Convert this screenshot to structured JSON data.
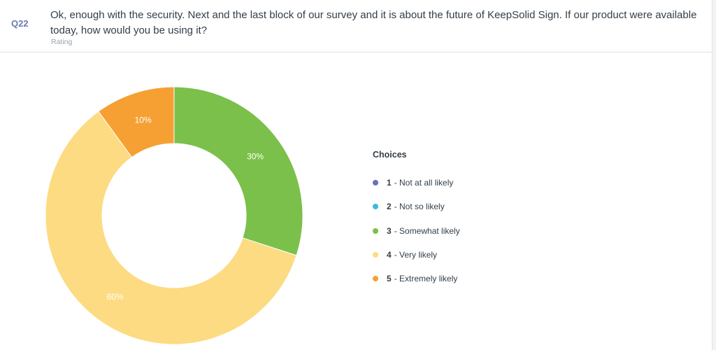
{
  "question": {
    "number": "Q22",
    "text": "Ok, enough with the security. Next and the last block of our survey and it is about the future of KeepSolid Sign. If our product were available today, how would you be using it?",
    "type": "Rating"
  },
  "legend": {
    "title": "Choices",
    "items": [
      {
        "num": "1",
        "label": "- Not at all likely",
        "color": "#6b6fb8"
      },
      {
        "num": "2",
        "label": "- Not so likely",
        "color": "#3fb6e4"
      },
      {
        "num": "3",
        "label": "- Somewhat likely",
        "color": "#7bc04a"
      },
      {
        "num": "4",
        "label": "- Very likely",
        "color": "#fddb82"
      },
      {
        "num": "5",
        "label": "- Extremely likely",
        "color": "#f6a033"
      }
    ]
  },
  "chart_data": {
    "type": "pie",
    "donut": true,
    "categories": [
      "1 - Not at all likely",
      "2 - Not so likely",
      "3 - Somewhat likely",
      "4 - Very likely",
      "5 - Extremely likely"
    ],
    "values": [
      0,
      0,
      30,
      60,
      10
    ],
    "unit": "%",
    "labels": [
      "",
      "",
      "30%",
      "60%",
      "10%"
    ],
    "colors": [
      "#6b6fb8",
      "#3fb6e4",
      "#7bc04a",
      "#fddb82",
      "#f6a033"
    ],
    "legend_title": "Choices",
    "legend_position": "right"
  }
}
